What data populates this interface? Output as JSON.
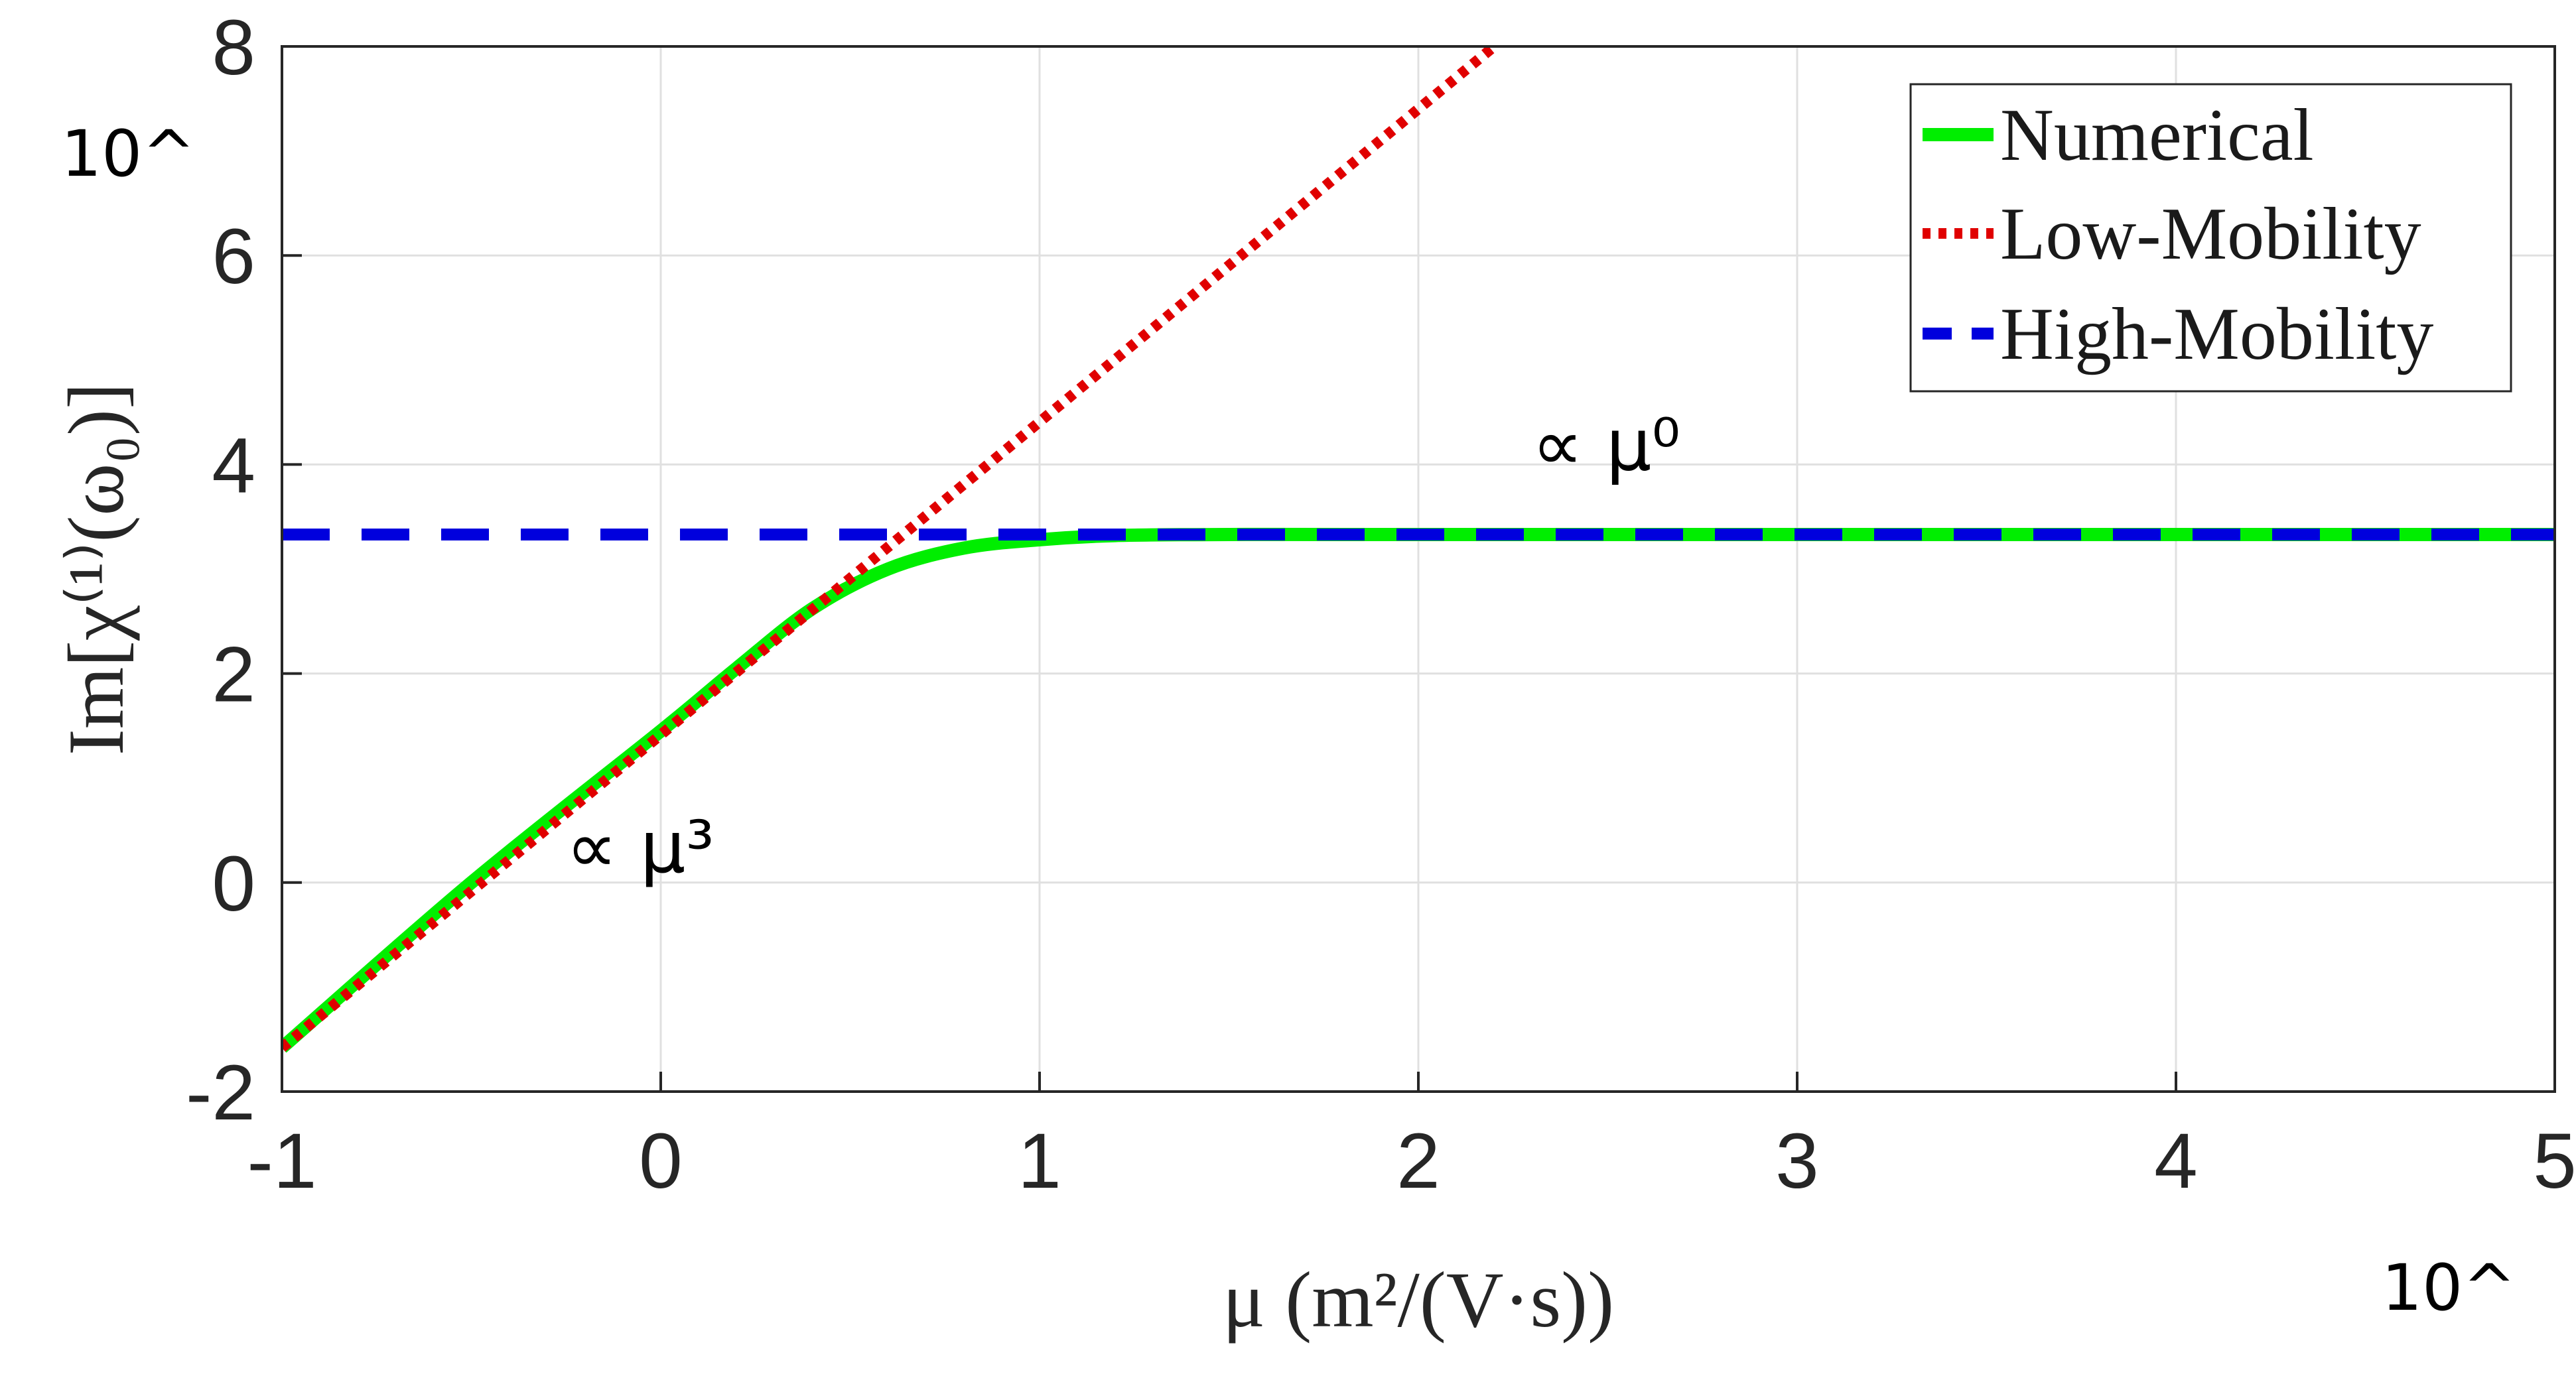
{
  "chart_data": {
    "type": "line",
    "xlabel": "μ (m²/(V·s))",
    "ylabel": "Im[χ⁽¹⁾(ω₀)]",
    "x_multiplier": "10^",
    "y_multiplier": "10^",
    "xlim": [
      -1,
      5
    ],
    "ylim": [
      -2,
      8
    ],
    "x_ticks": [
      "-1",
      "0",
      "1",
      "2",
      "3",
      "4",
      "5"
    ],
    "y_ticks": [
      "-2",
      "0",
      "2",
      "4",
      "6",
      "8"
    ],
    "grid": true,
    "legend_position": "top-right",
    "series": [
      {
        "name": "Numerical",
        "color": "#00ee00",
        "style": "solid",
        "x": [
          -1,
          -0.5,
          0,
          0.2,
          0.4,
          0.6,
          0.8,
          1.0,
          1.2,
          1.5,
          2,
          3,
          4,
          5
        ],
        "y": [
          -1.58,
          0.0,
          1.45,
          2.05,
          2.62,
          3.0,
          3.2,
          3.28,
          3.32,
          3.33,
          3.33,
          3.33,
          3.33,
          3.33
        ]
      },
      {
        "name": "Low-Mobility",
        "color": "#e00000",
        "style": "dotted",
        "x": [
          -1,
          2.2
        ],
        "y": [
          -1.58,
          8.0
        ]
      },
      {
        "name": "High-Mobility",
        "color": "#0000dd",
        "style": "dashed",
        "x": [
          -1,
          5
        ],
        "y": [
          3.33,
          3.33
        ]
      }
    ],
    "annotations": [
      {
        "text": "∝ μ³",
        "x": -0.25,
        "y": 0.1
      },
      {
        "text": "∝ μ⁰",
        "x": 2.3,
        "y": 3.95
      }
    ]
  }
}
